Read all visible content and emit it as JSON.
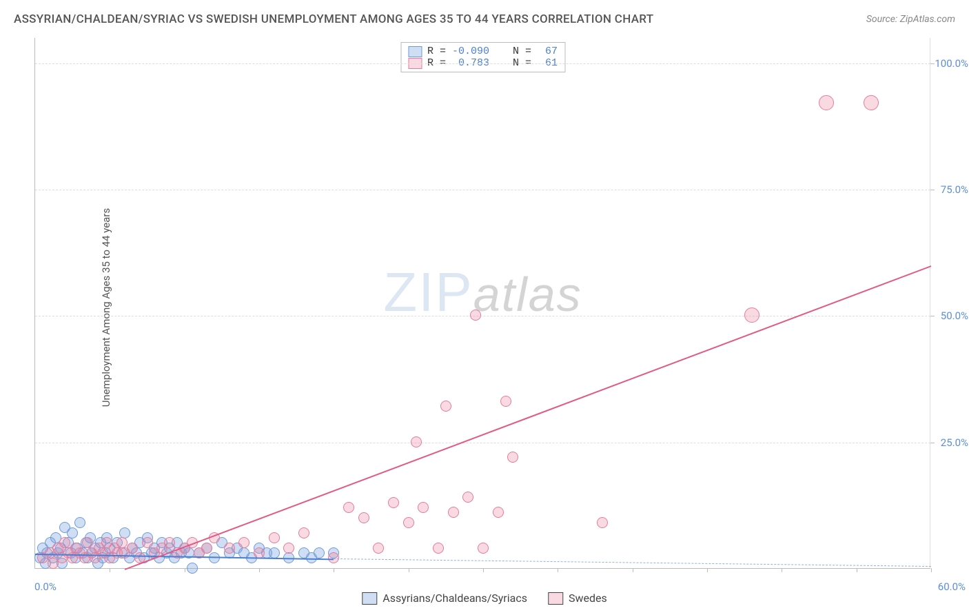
{
  "title": "ASSYRIAN/CHALDEAN/SYRIAC VS SWEDISH UNEMPLOYMENT AMONG AGES 35 TO 44 YEARS CORRELATION CHART",
  "source": "Source: ZipAtlas.com",
  "y_axis_label": "Unemployment Among Ages 35 to 44 years",
  "watermark_zip": "ZIP",
  "watermark_atlas": "atlas",
  "chart": {
    "type": "scatter",
    "xlim": [
      0,
      60
    ],
    "ylim": [
      0,
      105
    ],
    "x_origin_label": "0.0%",
    "x_max_label": "60.0%",
    "y_ticks": [
      25.0,
      50.0,
      75.0,
      100.0
    ],
    "y_tick_labels": [
      "25.0%",
      "50.0%",
      "75.0%",
      "100.0%"
    ],
    "x_tick_positions": [
      5,
      10,
      15,
      20,
      25,
      30,
      35,
      40,
      45,
      50,
      55,
      60
    ],
    "background_color": "#ffffff",
    "grid_color": "#dddddd",
    "series": [
      {
        "id": "blue",
        "name": "Assyrians/Chaldeans/Syriacs",
        "color_fill": "rgba(120,160,220,0.35)",
        "color_stroke": "#6d9ae0",
        "R": "-0.090",
        "N": "67",
        "trend": {
          "x1": 0,
          "y1": 3.0,
          "x2": 20,
          "y2": 2.0,
          "color": "#4b7fd1",
          "dash_extend_to_x": 60,
          "dash_y_at_end": 0.5
        },
        "points": [
          [
            0.3,
            2
          ],
          [
            0.5,
            4
          ],
          [
            0.7,
            1
          ],
          [
            0.8,
            3
          ],
          [
            1,
            5
          ],
          [
            1.2,
            2
          ],
          [
            1.4,
            6
          ],
          [
            1.5,
            3
          ],
          [
            1.7,
            4
          ],
          [
            1.8,
            1
          ],
          [
            2,
            8
          ],
          [
            2.2,
            5
          ],
          [
            2.4,
            3
          ],
          [
            2.5,
            7
          ],
          [
            2.7,
            2
          ],
          [
            2.8,
            4
          ],
          [
            3,
            9
          ],
          [
            3.2,
            3
          ],
          [
            3.4,
            5
          ],
          [
            3.5,
            2
          ],
          [
            3.7,
            6
          ],
          [
            3.8,
            3
          ],
          [
            4,
            4
          ],
          [
            4.2,
            1
          ],
          [
            4.4,
            5
          ],
          [
            4.5,
            2
          ],
          [
            4.7,
            3
          ],
          [
            4.8,
            6
          ],
          [
            5,
            4
          ],
          [
            5.2,
            2
          ],
          [
            5.5,
            5
          ],
          [
            5.8,
            3
          ],
          [
            6,
            7
          ],
          [
            6.3,
            2
          ],
          [
            6.5,
            4
          ],
          [
            6.8,
            3
          ],
          [
            7,
            5
          ],
          [
            7.3,
            2
          ],
          [
            7.5,
            6
          ],
          [
            7.8,
            3
          ],
          [
            8,
            4
          ],
          [
            8.3,
            2
          ],
          [
            8.5,
            5
          ],
          [
            8.8,
            3
          ],
          [
            9,
            4
          ],
          [
            9.3,
            2
          ],
          [
            9.5,
            5
          ],
          [
            9.8,
            3
          ],
          [
            10,
            4
          ],
          [
            10.3,
            3
          ],
          [
            10.5,
            0
          ],
          [
            11,
            3
          ],
          [
            11.5,
            4
          ],
          [
            12,
            2
          ],
          [
            12.5,
            5
          ],
          [
            13,
            3
          ],
          [
            13.5,
            4
          ],
          [
            14,
            3
          ],
          [
            14.5,
            2
          ],
          [
            15,
            4
          ],
          [
            15.5,
            3
          ],
          [
            16,
            3
          ],
          [
            17,
            2
          ],
          [
            18,
            3
          ],
          [
            18.5,
            2
          ],
          [
            19,
            3
          ],
          [
            20,
            3
          ]
        ]
      },
      {
        "id": "pink",
        "name": "Swedes",
        "color_fill": "rgba(235,130,160,0.30)",
        "color_stroke": "#e77b9b",
        "R": "0.783",
        "N": "61",
        "trend": {
          "x1": 6,
          "y1": 0,
          "x2": 60,
          "y2": 60,
          "color": "#e05a85"
        },
        "points": [
          [
            0.5,
            2
          ],
          [
            1,
            3
          ],
          [
            1.2,
            1
          ],
          [
            1.5,
            4
          ],
          [
            1.8,
            2
          ],
          [
            2,
            5
          ],
          [
            2.2,
            3
          ],
          [
            2.5,
            2
          ],
          [
            2.7,
            4
          ],
          [
            3,
            3
          ],
          [
            3.3,
            2
          ],
          [
            3.5,
            5
          ],
          [
            3.8,
            3
          ],
          [
            4,
            2
          ],
          [
            4.3,
            4
          ],
          [
            4.5,
            3
          ],
          [
            4.8,
            5
          ],
          [
            5,
            2
          ],
          [
            5.3,
            4
          ],
          [
            5.5,
            3
          ],
          [
            5.8,
            5
          ],
          [
            6,
            3
          ],
          [
            6.5,
            4
          ],
          [
            7,
            2
          ],
          [
            7.5,
            5
          ],
          [
            8,
            3
          ],
          [
            8.5,
            4
          ],
          [
            9,
            5
          ],
          [
            9.5,
            3
          ],
          [
            10,
            4
          ],
          [
            10.5,
            5
          ],
          [
            11,
            3
          ],
          [
            11.5,
            4
          ],
          [
            12,
            6
          ],
          [
            13,
            4
          ],
          [
            14,
            5
          ],
          [
            15,
            3
          ],
          [
            16,
            6
          ],
          [
            17,
            4
          ],
          [
            18,
            7
          ],
          [
            20,
            2
          ],
          [
            21,
            12
          ],
          [
            22,
            10
          ],
          [
            23,
            4
          ],
          [
            24,
            13
          ],
          [
            25,
            9
          ],
          [
            25.5,
            25
          ],
          [
            26,
            12
          ],
          [
            27,
            4
          ],
          [
            27.5,
            32
          ],
          [
            28,
            11
          ],
          [
            29,
            14
          ],
          [
            29.5,
            50
          ],
          [
            30,
            4
          ],
          [
            31,
            11
          ],
          [
            31.5,
            33
          ],
          [
            32,
            22
          ],
          [
            38,
            9
          ],
          [
            48,
            50
          ],
          [
            53,
            92
          ],
          [
            56,
            92
          ]
        ]
      }
    ]
  },
  "legend_bottom": [
    {
      "swatch": "blue",
      "label": "Assyrians/Chaldeans/Syriacs"
    },
    {
      "swatch": "pink",
      "label": "Swedes"
    }
  ],
  "stat_box": {
    "rows": [
      {
        "swatch": "blue",
        "r_label": "R =",
        "r_val": "-0.090",
        "n_label": "N =",
        "n_val": "67"
      },
      {
        "swatch": "pink",
        "r_label": "R =",
        "r_val": "0.783",
        "n_label": "N =",
        "n_val": "61"
      }
    ]
  }
}
